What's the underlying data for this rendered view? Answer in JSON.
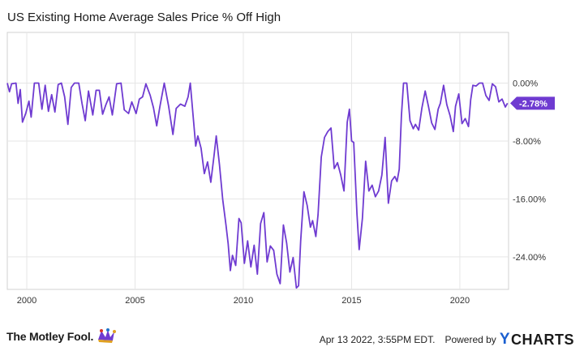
{
  "title": "US Existing Home Average Sales Price % Off High",
  "footer": {
    "brand": "The Motley Fool.",
    "timestamp": "Apr 13 2022, 3:55PM EDT.",
    "powered_by": "Powered by",
    "ycharts_y": "Y",
    "ycharts_rest": "CHARTS"
  },
  "colors": {
    "series": "#6f3bd1",
    "grid": "#e6e6e6",
    "label_bg": "#6f3bd1"
  },
  "chart_data": {
    "type": "line",
    "title": "US Existing Home Average Sales Price % Off High",
    "x_ticks": [
      "2000",
      "2005",
      "2010",
      "2015",
      "2020"
    ],
    "x_tick_values": [
      2000,
      2005,
      2010,
      2015,
      2020
    ],
    "y_ticks": [
      "0.00%",
      "-8.00%",
      "-16.00%",
      "-24.00%"
    ],
    "y_tick_values": [
      0,
      -8,
      -16,
      -24
    ],
    "xlim": [
      1999.1,
      2022.25
    ],
    "ylim": [
      -28.5,
      7
    ],
    "grid": true,
    "last_value_label": "-2.78%",
    "series": [
      {
        "values": [
          [
            1999.1,
            0.0
          ],
          [
            1999.2,
            -1.2
          ],
          [
            1999.3,
            -0.1
          ],
          [
            1999.5,
            0.0
          ],
          [
            1999.6,
            -2.8
          ],
          [
            1999.7,
            -0.9
          ],
          [
            1999.8,
            -5.4
          ],
          [
            1999.95,
            -4.2
          ],
          [
            2000.1,
            -2.5
          ],
          [
            2000.2,
            -4.7
          ],
          [
            2000.35,
            0.0
          ],
          [
            2000.55,
            0.0
          ],
          [
            2000.7,
            -3.6
          ],
          [
            2000.85,
            -0.3
          ],
          [
            2001.0,
            -3.9
          ],
          [
            2001.15,
            -1.6
          ],
          [
            2001.3,
            -4.0
          ],
          [
            2001.45,
            -0.2
          ],
          [
            2001.6,
            0.0
          ],
          [
            2001.75,
            -1.9
          ],
          [
            2001.9,
            -5.7
          ],
          [
            2002.05,
            -0.6
          ],
          [
            2002.2,
            0.0
          ],
          [
            2002.4,
            0.0
          ],
          [
            2002.55,
            -2.8
          ],
          [
            2002.7,
            -5.2
          ],
          [
            2002.85,
            -1.1
          ],
          [
            2003.05,
            -4.4
          ],
          [
            2003.2,
            -1.0
          ],
          [
            2003.35,
            -1.0
          ],
          [
            2003.5,
            -4.3
          ],
          [
            2003.65,
            -3.0
          ],
          [
            2003.8,
            -1.9
          ],
          [
            2003.95,
            -4.4
          ],
          [
            2004.15,
            -0.1
          ],
          [
            2004.35,
            0.0
          ],
          [
            2004.5,
            -3.7
          ],
          [
            2004.7,
            -4.2
          ],
          [
            2004.85,
            -2.6
          ],
          [
            2005.05,
            -4.2
          ],
          [
            2005.2,
            -2.2
          ],
          [
            2005.35,
            -1.9
          ],
          [
            2005.5,
            -0.1
          ],
          [
            2005.7,
            -1.7
          ],
          [
            2005.85,
            -3.4
          ],
          [
            2006.0,
            -5.9
          ],
          [
            2006.15,
            -3.2
          ],
          [
            2006.35,
            0.0
          ],
          [
            2006.55,
            -3.2
          ],
          [
            2006.75,
            -7.1
          ],
          [
            2006.9,
            -3.5
          ],
          [
            2007.1,
            -2.9
          ],
          [
            2007.3,
            -3.2
          ],
          [
            2007.45,
            -1.9
          ],
          [
            2007.55,
            0.0
          ],
          [
            2007.7,
            -5.2
          ],
          [
            2007.8,
            -8.7
          ],
          [
            2007.9,
            -7.3
          ],
          [
            2008.05,
            -9.0
          ],
          [
            2008.2,
            -12.5
          ],
          [
            2008.35,
            -10.9
          ],
          [
            2008.5,
            -13.7
          ],
          [
            2008.65,
            -10.0
          ],
          [
            2008.75,
            -7.3
          ],
          [
            2008.9,
            -11.3
          ],
          [
            2009.05,
            -16.1
          ],
          [
            2009.2,
            -19.6
          ],
          [
            2009.3,
            -22.2
          ],
          [
            2009.4,
            -25.9
          ],
          [
            2009.5,
            -23.8
          ],
          [
            2009.65,
            -25.2
          ],
          [
            2009.8,
            -18.7
          ],
          [
            2009.9,
            -19.3
          ],
          [
            2010.05,
            -24.9
          ],
          [
            2010.2,
            -21.8
          ],
          [
            2010.35,
            -25.4
          ],
          [
            2010.5,
            -22.4
          ],
          [
            2010.65,
            -26.4
          ],
          [
            2010.8,
            -19.4
          ],
          [
            2010.95,
            -17.9
          ],
          [
            2011.1,
            -24.7
          ],
          [
            2011.25,
            -22.5
          ],
          [
            2011.4,
            -23.1
          ],
          [
            2011.55,
            -26.4
          ],
          [
            2011.7,
            -27.7
          ],
          [
            2011.85,
            -19.6
          ],
          [
            2012.0,
            -22.1
          ],
          [
            2012.15,
            -26.1
          ],
          [
            2012.3,
            -24.1
          ],
          [
            2012.45,
            -28.3
          ],
          [
            2012.55,
            -28.0
          ],
          [
            2012.65,
            -21.8
          ],
          [
            2012.8,
            -15.0
          ],
          [
            2012.95,
            -16.9
          ],
          [
            2013.1,
            -19.9
          ],
          [
            2013.2,
            -19.0
          ],
          [
            2013.35,
            -21.2
          ],
          [
            2013.45,
            -18.2
          ],
          [
            2013.6,
            -10.2
          ],
          [
            2013.75,
            -7.5
          ],
          [
            2013.9,
            -6.7
          ],
          [
            2014.05,
            -6.2
          ],
          [
            2014.2,
            -11.8
          ],
          [
            2014.35,
            -11.0
          ],
          [
            2014.5,
            -12.7
          ],
          [
            2014.65,
            -14.9
          ],
          [
            2014.8,
            -5.4
          ],
          [
            2014.9,
            -3.6
          ],
          [
            2015.0,
            -8.0
          ],
          [
            2015.1,
            -8.2
          ],
          [
            2015.25,
            -18.1
          ],
          [
            2015.35,
            -23.0
          ],
          [
            2015.5,
            -18.7
          ],
          [
            2015.65,
            -10.8
          ],
          [
            2015.8,
            -14.9
          ],
          [
            2015.95,
            -14.1
          ],
          [
            2016.1,
            -15.7
          ],
          [
            2016.25,
            -14.9
          ],
          [
            2016.4,
            -12.7
          ],
          [
            2016.55,
            -7.5
          ],
          [
            2016.7,
            -16.6
          ],
          [
            2016.85,
            -13.5
          ],
          [
            2017.0,
            -12.9
          ],
          [
            2017.1,
            -13.6
          ],
          [
            2017.2,
            -11.9
          ],
          [
            2017.3,
            -4.5
          ],
          [
            2017.4,
            0.0
          ],
          [
            2017.55,
            0.0
          ],
          [
            2017.7,
            -5.2
          ],
          [
            2017.85,
            -6.3
          ],
          [
            2017.95,
            -5.7
          ],
          [
            2018.1,
            -6.5
          ],
          [
            2018.25,
            -3.4
          ],
          [
            2018.4,
            -1.1
          ],
          [
            2018.55,
            -3.2
          ],
          [
            2018.7,
            -5.5
          ],
          [
            2018.85,
            -6.4
          ],
          [
            2019.0,
            -3.6
          ],
          [
            2019.1,
            -2.8
          ],
          [
            2019.25,
            -0.3
          ],
          [
            2019.4,
            -3.0
          ],
          [
            2019.55,
            -4.5
          ],
          [
            2019.7,
            -6.7
          ],
          [
            2019.8,
            -3.2
          ],
          [
            2019.95,
            -1.5
          ],
          [
            2020.1,
            -5.6
          ],
          [
            2020.25,
            -4.9
          ],
          [
            2020.4,
            -6.0
          ],
          [
            2020.5,
            -2.3
          ],
          [
            2020.6,
            -0.3
          ],
          [
            2020.75,
            -0.4
          ],
          [
            2020.9,
            0.0
          ],
          [
            2021.05,
            0.0
          ],
          [
            2021.2,
            -1.7
          ],
          [
            2021.35,
            -2.4
          ],
          [
            2021.5,
            -0.1
          ],
          [
            2021.65,
            -0.5
          ],
          [
            2021.8,
            -2.6
          ],
          [
            2021.95,
            -2.2
          ],
          [
            2022.1,
            -3.3
          ],
          [
            2022.2,
            -2.78
          ]
        ]
      }
    ]
  }
}
